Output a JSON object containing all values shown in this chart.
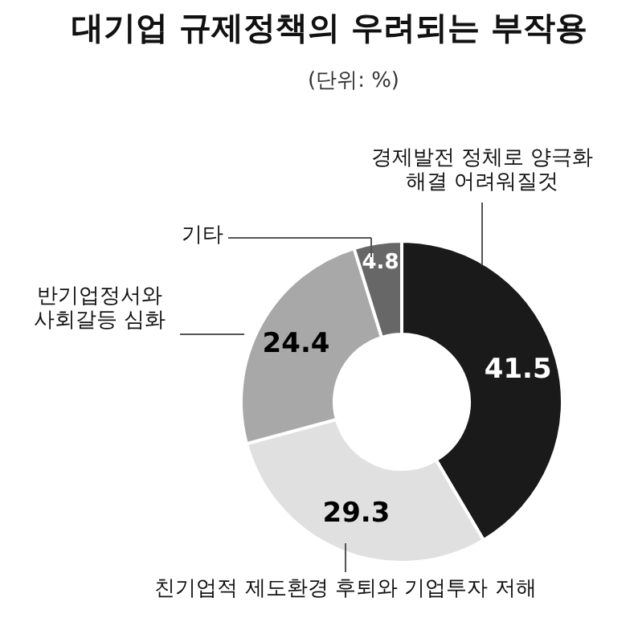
{
  "chart_data": {
    "type": "donut",
    "title": "대기업 규제정책의 우려되는 부작용",
    "subtitle": "(단위: %)",
    "categories": [
      "경제발전 정체로 양극화\n해결 어려워질것",
      "친기업적 제도환경 후퇴와 기업투자 저해",
      "반기업정서와\n사회갈등 심화",
      "기타"
    ],
    "values": [
      41.5,
      29.3,
      24.4,
      4.8
    ],
    "colors": [
      "#1a1a1a",
      "#e0e0e0",
      "#a8a8a8",
      "#676767"
    ],
    "data_labels": true
  }
}
